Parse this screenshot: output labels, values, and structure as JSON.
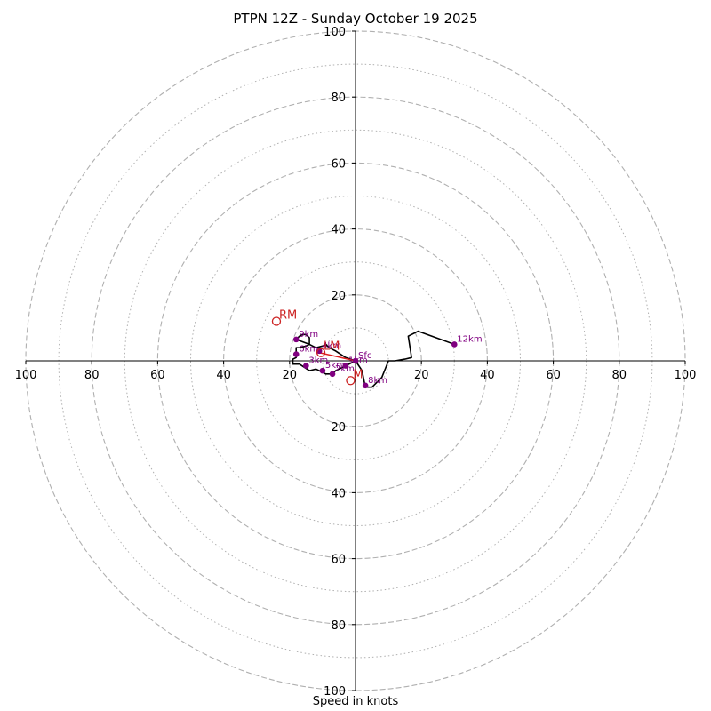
{
  "chart_data": {
    "type": "hodograph",
    "title": "PTPN 12Z - Sunday October 19 2025",
    "xlabel": "Speed in knots",
    "range_max": 100,
    "ring_major": [
      20,
      40,
      60,
      80,
      100
    ],
    "ring_minor": [
      10,
      30,
      50,
      70,
      90
    ],
    "tick_labels": [
      "100",
      "80",
      "60",
      "40",
      "20",
      "20",
      "40",
      "60",
      "80",
      "100"
    ],
    "hodograph_trace": [
      [
        0,
        0
      ],
      [
        -1,
        -0.5
      ],
      [
        -3,
        -1.5
      ],
      [
        -6,
        -3
      ],
      [
        -7,
        -4
      ],
      [
        -9,
        -4
      ],
      [
        -11,
        -3
      ],
      [
        -12,
        -2.5
      ],
      [
        -14,
        -3
      ],
      [
        -17,
        -1
      ],
      [
        -19,
        -1
      ],
      [
        -19,
        0.5
      ],
      [
        -18,
        1
      ],
      [
        -18,
        4
      ],
      [
        -17,
        4
      ],
      [
        -15,
        4.5
      ],
      [
        -14,
        5
      ],
      [
        -14,
        7
      ],
      [
        -15,
        8
      ],
      [
        -16,
        8
      ],
      [
        -17,
        7.5
      ],
      [
        -18,
        6.5
      ],
      [
        -14,
        5
      ],
      [
        -12,
        4
      ],
      [
        -10,
        4.5
      ],
      [
        -9,
        5
      ],
      [
        -8,
        4
      ],
      [
        -6,
        3
      ],
      [
        -3,
        1
      ],
      [
        0,
        0
      ],
      [
        2,
        -3
      ],
      [
        3,
        -8
      ],
      [
        5,
        -8
      ],
      [
        7,
        -6
      ],
      [
        8,
        -5
      ],
      [
        10,
        0
      ],
      [
        12,
        0
      ],
      [
        15,
        0.5
      ],
      [
        17,
        1
      ],
      [
        16,
        7.5
      ],
      [
        19,
        9
      ],
      [
        30,
        5
      ]
    ],
    "height_points": [
      {
        "label": "Sfc",
        "u": 0,
        "v": 0
      },
      {
        "label": "1km",
        "u": -3,
        "v": -1.5
      },
      {
        "label": "2km",
        "u": -7,
        "v": -4
      },
      {
        "label": "3km",
        "u": -15,
        "v": -1.5
      },
      {
        "label": "4km",
        "u": -11,
        "v": 3
      },
      {
        "label": "5km",
        "u": -10,
        "v": -3
      },
      {
        "label": "6km",
        "u": -18,
        "v": 2
      },
      {
        "label": "9km",
        "u": -18,
        "v": 6.5
      },
      {
        "label": "8km",
        "u": 3,
        "v": -7.5
      },
      {
        "label": "12km",
        "u": 30,
        "v": 5
      }
    ],
    "storm_motion": [
      {
        "label": "RM",
        "u": -24,
        "v": 12
      },
      {
        "label": "LM",
        "u": -10.5,
        "v": 2.5
      },
      {
        "label": "M",
        "u": -1.5,
        "v": -6
      }
    ],
    "shear_vector": {
      "from": [
        0,
        0
      ],
      "to": [
        -11,
        2.5
      ]
    },
    "colors": {
      "grid": "#b0b0b0",
      "trace": "#000000",
      "points": "#800080",
      "storm": "#cc2222",
      "shear": "#e02020"
    }
  }
}
